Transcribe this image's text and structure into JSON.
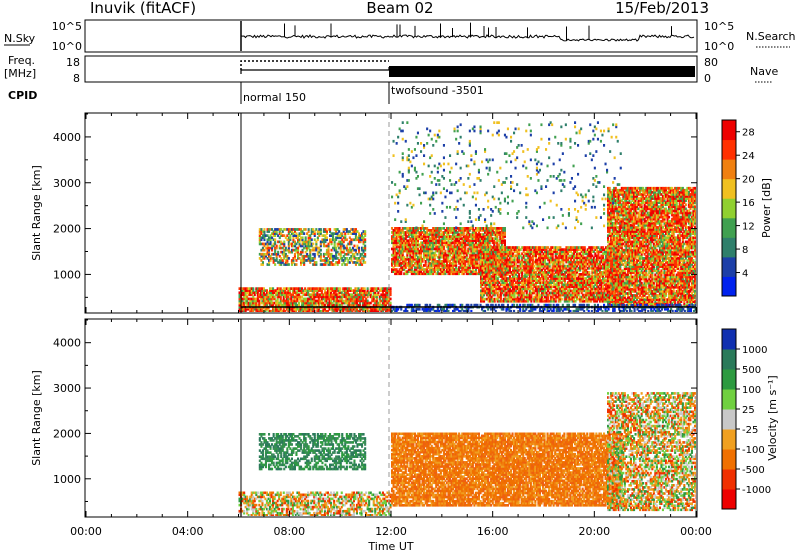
{
  "header": {
    "station": "Inuvik (fitACF)",
    "beam": "Beam 02",
    "date": "15/Feb/2013"
  },
  "nsky_panel": {
    "left_label": "N.Sky",
    "left_ticks": [
      "10^5",
      "10^0"
    ],
    "right_ticks": [
      "10^5",
      "10^0"
    ],
    "right_label": "N.Search"
  },
  "freq_panel": {
    "left_label_1": "Freq.",
    "left_label_2": "[MHz]",
    "left_ticks": [
      "18",
      "8"
    ],
    "right_ticks": [
      "80",
      "0"
    ],
    "right_label": "Nave"
  },
  "cpid": {
    "label": "CPID",
    "modes": [
      "normal 150",
      "twofsound -3501"
    ]
  },
  "x_axis": {
    "label": "Time UT",
    "ticks": [
      "00:00",
      "04:00",
      "08:00",
      "12:00",
      "16:00",
      "20:00",
      "00:00"
    ]
  },
  "colors": {
    "power_scale": [
      "#0022ee",
      "#1c3fa8",
      "#2f7f6b",
      "#40a050",
      "#90d030",
      "#f0c020",
      "#f08010",
      "#ff3000",
      "#ee0000"
    ],
    "velocity_scale": [
      "#1030b0",
      "#2a7a5a",
      "#2d9a40",
      "#70d040",
      "#c8c8c8",
      "#f0a020",
      "#f07000",
      "#f03000",
      "#ee0000"
    ]
  },
  "chart_data": [
    {
      "type": "heatmap",
      "ylabel": "Slant Range [km]",
      "y_ticks": [
        "1000",
        "2000",
        "3000",
        "4000"
      ],
      "ylim": [
        180,
        4500
      ],
      "xlim_hours": [
        0,
        24
      ],
      "colorbar": {
        "label": "Power [dB]",
        "ticks": [
          "4",
          "8",
          "12",
          "16",
          "20",
          "24",
          "28"
        ],
        "range": [
          0,
          30
        ]
      },
      "echo_regions": [
        {
          "t_start": 6.0,
          "t_end": 12.0,
          "r_low": 180,
          "r_high": 700,
          "level": "high"
        },
        {
          "t_start": 6.8,
          "t_end": 11.0,
          "r_low": 1200,
          "r_high": 2000,
          "level": "medium"
        },
        {
          "t_start": 12.0,
          "t_end": 16.5,
          "r_low": 1000,
          "r_high": 2000,
          "level": "high"
        },
        {
          "t_start": 15.5,
          "t_end": 21.0,
          "r_low": 400,
          "r_high": 1600,
          "level": "high"
        },
        {
          "t_start": 20.5,
          "t_end": 24.0,
          "r_low": 300,
          "r_high": 2900,
          "level": "high"
        },
        {
          "t_start": 12.0,
          "t_end": 24.0,
          "r_low": 180,
          "r_high": 330,
          "level": "low"
        },
        {
          "t_start": 12.0,
          "t_end": 21.0,
          "r_low": 2000,
          "r_high": 4300,
          "level": "sparse"
        }
      ]
    },
    {
      "type": "heatmap",
      "ylabel": "Slant Range [km]",
      "y_ticks": [
        "1000",
        "2000",
        "3000",
        "4000"
      ],
      "ylim": [
        180,
        4500
      ],
      "xlim_hours": [
        0,
        24
      ],
      "colorbar": {
        "label": "Velocity [m s⁻¹]",
        "ticks": [
          "1000",
          "500",
          "100",
          "25",
          "-25",
          "-100",
          "-500",
          "-1000"
        ]
      },
      "echo_regions": [
        {
          "t_start": 6.0,
          "t_end": 12.0,
          "r_low": 180,
          "r_high": 700,
          "level": "mixed"
        },
        {
          "t_start": 6.8,
          "t_end": 11.0,
          "r_low": 1200,
          "r_high": 2000,
          "level": "positive"
        },
        {
          "t_start": 12.0,
          "t_end": 21.0,
          "r_low": 400,
          "r_high": 2000,
          "level": "negative"
        },
        {
          "t_start": 20.5,
          "t_end": 24.0,
          "r_low": 300,
          "r_high": 2900,
          "level": "mixed"
        }
      ]
    }
  ]
}
